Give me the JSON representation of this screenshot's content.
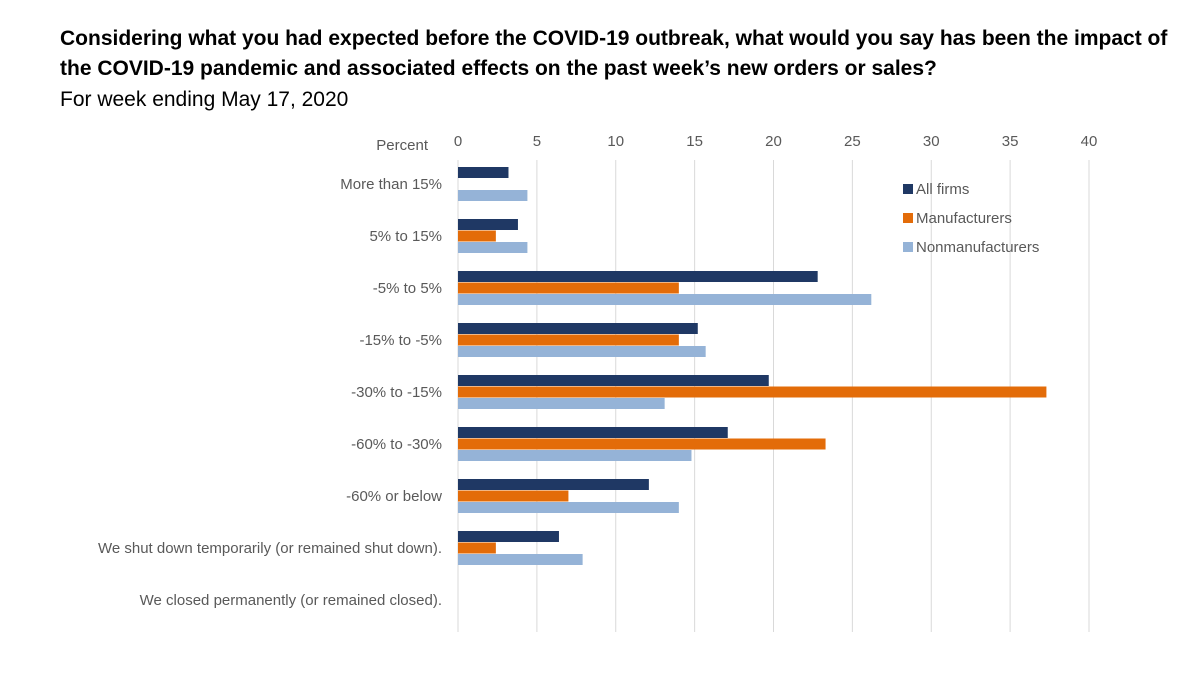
{
  "title": "Considering what you had expected before the COVID-19 outbreak, what would you say has been the impact of the COVID-19 pandemic and associated effects on the past week’s new orders or sales?",
  "subtitle": "For week ending May 17, 2020",
  "chart_data": {
    "type": "bar",
    "orientation": "horizontal",
    "axis_label": "Percent",
    "xlim": [
      0,
      40
    ],
    "ticks": [
      0,
      5,
      10,
      15,
      20,
      25,
      30,
      35,
      40
    ],
    "grid": true,
    "legend_position": "top-right",
    "categories": [
      "More than 15%",
      "5% to 15%",
      "-5% to 5%",
      "-15% to -5%",
      "-30% to -15%",
      "-60% to -30%",
      "-60% or below",
      "We shut down temporarily (or remained shut down).",
      "We closed permanently (or remained closed)."
    ],
    "series": [
      {
        "name": "All firms",
        "color": "#1f3864",
        "values": [
          3.2,
          3.8,
          22.8,
          15.2,
          19.7,
          17.1,
          12.1,
          6.4,
          0
        ]
      },
      {
        "name": "Manufacturers",
        "color": "#e36c09",
        "values": [
          0,
          2.4,
          14.0,
          14.0,
          37.3,
          23.3,
          7.0,
          2.4,
          0
        ]
      },
      {
        "name": "Nonmanufacturers",
        "color": "#95b3d7",
        "values": [
          4.4,
          4.4,
          26.2,
          15.7,
          13.1,
          14.8,
          14.0,
          7.9,
          0
        ]
      }
    ]
  }
}
